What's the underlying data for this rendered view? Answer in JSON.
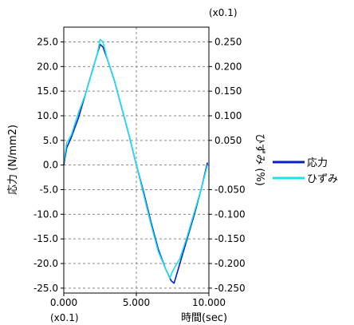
{
  "chart_data": {
    "type": "line",
    "x_label": "時間(sec)",
    "x_scale_note": "(x0.1)",
    "x_range": [
      0,
      10
    ],
    "x_ticks": [
      "0.000",
      "5.000",
      "10.000"
    ],
    "y_left": {
      "label": "応力 (N/mm2)",
      "range": [
        -26,
        28
      ],
      "ticks": [
        "25.0",
        "20.0",
        "15.0",
        "10.0",
        "5.0",
        "0.0",
        "-5.0",
        "-10.0",
        "-15.0",
        "-20.0",
        "-25.0"
      ]
    },
    "y_right": {
      "label": "ひずみ (%)",
      "scale_note": "(x0.1)",
      "range": [
        -0.26,
        0.28
      ],
      "ticks": [
        "0.250",
        "0.200",
        "0.150",
        "0.100",
        "0.050",
        "-0.050",
        "-0.100",
        "-0.150",
        "-0.200",
        "-0.250"
      ]
    },
    "grid": true,
    "legend_position": "right",
    "series": [
      {
        "name": "応力",
        "color": "#0a1ec8",
        "axis": "left",
        "x": [
          0,
          0.2,
          0.5,
          1.0,
          1.5,
          2.0,
          2.5,
          2.7,
          3.0,
          3.5,
          4.0,
          4.5,
          5.0,
          5.5,
          6.0,
          6.5,
          7.0,
          7.4,
          7.6,
          8.0,
          8.5,
          9.0,
          9.5,
          9.9
        ],
        "values": [
          0.0,
          3.5,
          5.5,
          9.5,
          14.5,
          19.5,
          24.5,
          24.0,
          21.5,
          17.0,
          11.5,
          6.0,
          0.0,
          -5.5,
          -11.5,
          -17.0,
          -21.0,
          -23.5,
          -24.0,
          -20.0,
          -15.0,
          -10.0,
          -4.5,
          0.5
        ]
      },
      {
        "name": "ひずみ",
        "color": "#19e1f0",
        "axis": "right",
        "x": [
          0,
          0.2,
          0.5,
          1.0,
          1.5,
          2.0,
          2.3,
          2.5,
          2.7,
          3.0,
          3.5,
          4.0,
          4.5,
          5.0,
          5.5,
          6.0,
          6.5,
          7.0,
          7.3,
          7.5,
          7.7,
          8.0,
          8.5,
          9.0,
          9.5,
          9.9
        ],
        "values": [
          0.005,
          0.045,
          0.06,
          0.105,
          0.145,
          0.195,
          0.225,
          0.255,
          0.25,
          0.215,
          0.17,
          0.115,
          0.06,
          0.0,
          -0.06,
          -0.12,
          -0.175,
          -0.21,
          -0.23,
          -0.215,
          -0.205,
          -0.19,
          -0.145,
          -0.095,
          -0.045,
          0.0
        ]
      }
    ]
  }
}
